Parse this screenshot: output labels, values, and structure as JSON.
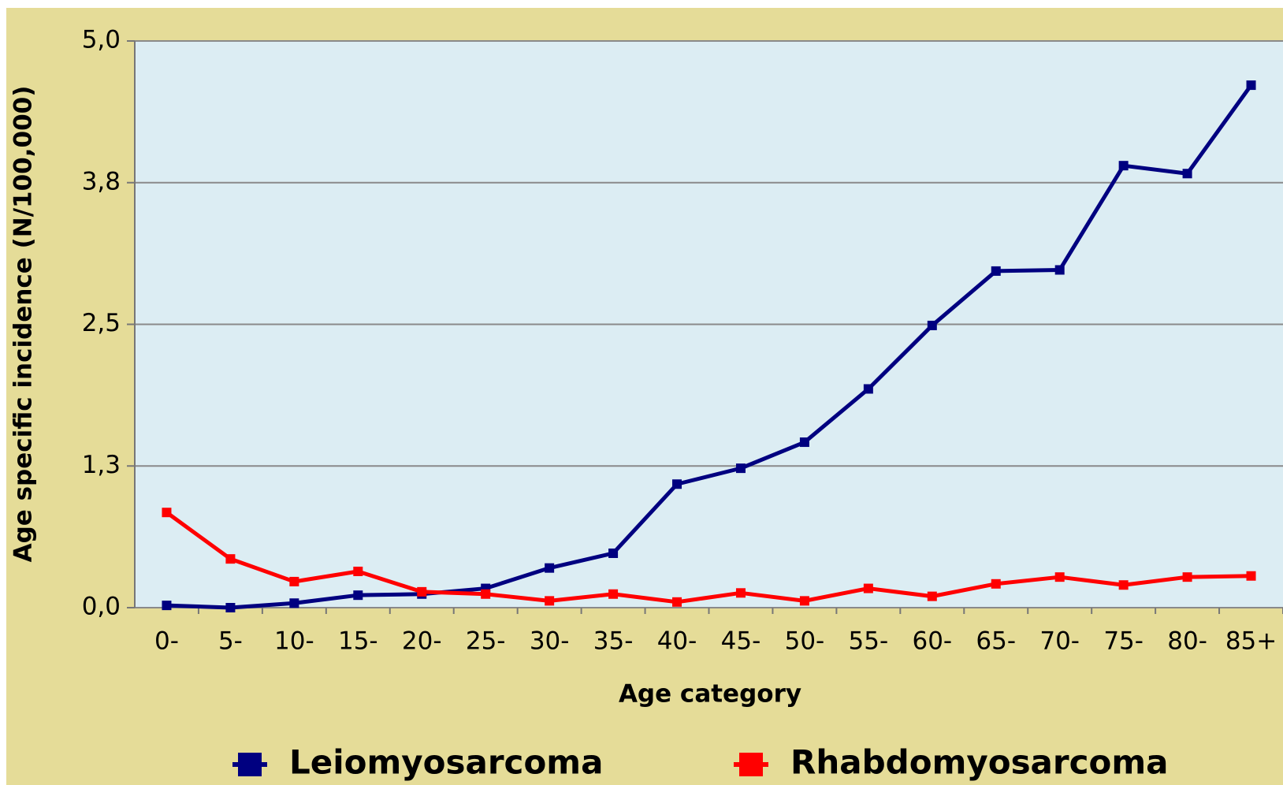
{
  "chart_data": {
    "type": "line",
    "x_label": "Age category",
    "y_label": "Age specific incidence (N/100,000)",
    "categories": [
      "0-",
      "5-",
      "10-",
      "15-",
      "20-",
      "25-",
      "30-",
      "35-",
      "40-",
      "45-",
      "50-",
      "55-",
      "60-",
      "65-",
      "70-",
      "75-",
      "80-",
      "85+"
    ],
    "series": [
      {
        "name": "Leiomyosarcoma",
        "color": "#000080",
        "values": [
          0.02,
          0,
          0.04,
          0.11,
          0.12,
          0.17,
          0.35,
          0.48,
          1.09,
          1.23,
          1.46,
          1.93,
          2.49,
          2.97,
          2.98,
          3.9,
          3.83,
          4.61
        ]
      },
      {
        "name": "Rhabdomyosarcoma",
        "color": "#ff0000",
        "values": [
          0.84,
          0.43,
          0.23,
          0.32,
          0.14,
          0.12,
          0.06,
          0.12,
          0.05,
          0.13,
          0.06,
          0.17,
          0.1,
          0.21,
          0.27,
          0.2,
          0.27,
          0.28
        ]
      }
    ],
    "ylim": [
      0,
      5
    ],
    "yticks": [
      {
        "value": 0,
        "label": "0,0"
      },
      {
        "value": 1.25,
        "label": "1,3"
      },
      {
        "value": 2.5,
        "label": "2,5"
      },
      {
        "value": 3.75,
        "label": "3,8"
      },
      {
        "value": 5,
        "label": "5,0"
      }
    ],
    "grid": true,
    "legend": "bottom"
  }
}
